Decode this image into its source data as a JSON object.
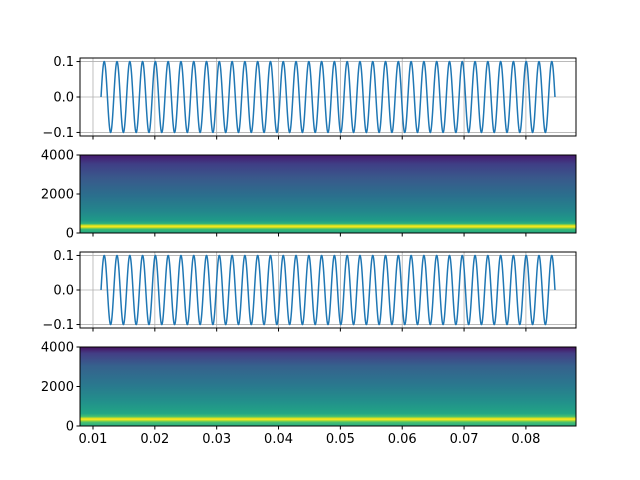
{
  "chart_data": [
    {
      "type": "line",
      "title": "",
      "xlabel": "",
      "ylabel": "",
      "x_range": [
        0.0113,
        0.0847
      ],
      "xlim": [
        0.0079,
        0.0881
      ],
      "ylim": [
        -0.11,
        0.11
      ],
      "yticks": [
        0.1,
        0.0,
        -0.1
      ],
      "ytick_labels": [
        "0.1",
        "0.0",
        "−0.1"
      ],
      "xtick_labels_shown": false,
      "grid": true,
      "signal": {
        "amplitude": 0.1,
        "cycles": 35.5,
        "phase": "sine"
      },
      "series": [
        {
          "color": "#1f77b4"
        }
      ]
    },
    {
      "type": "heatmap",
      "title": "",
      "xlabel": "",
      "ylabel": "",
      "xlim": [
        0.0079,
        0.0881
      ],
      "ylim": [
        0,
        4000
      ],
      "yticks": [
        4000,
        2000,
        0
      ],
      "ytick_labels": [
        "4000",
        "2000",
        "0"
      ],
      "xtick_labels_shown": false,
      "colormap": "viridis",
      "dominant_frequency": 430,
      "peak_band": [
        360,
        500
      ]
    },
    {
      "type": "line",
      "title": "",
      "xlabel": "",
      "ylabel": "",
      "x_range": [
        0.0113,
        0.0847
      ],
      "xlim": [
        0.0079,
        0.0881
      ],
      "ylim": [
        -0.11,
        0.11
      ],
      "yticks": [
        0.1,
        0.0,
        -0.1
      ],
      "ytick_labels": [
        "0.1",
        "0.0",
        "−0.1"
      ],
      "xtick_labels_shown": false,
      "grid": true,
      "signal": {
        "amplitude": 0.1,
        "cycles": 35.5,
        "phase": "sine"
      },
      "series": [
        {
          "color": "#1f77b4"
        }
      ]
    },
    {
      "type": "heatmap",
      "title": "",
      "xlabel": "",
      "ylabel": "",
      "xlim": [
        0.0079,
        0.0881
      ],
      "ylim": [
        0,
        4000
      ],
      "yticks": [
        4000,
        2000,
        0
      ],
      "ytick_labels": [
        "4000",
        "2000",
        "0"
      ],
      "xticks": [
        0.01,
        0.02,
        0.03,
        0.04,
        0.05,
        0.06,
        0.07,
        0.08
      ],
      "xtick_labels": [
        "0.01",
        "0.02",
        "0.03",
        "0.04",
        "0.05",
        "0.06",
        "0.07",
        "0.08"
      ],
      "xtick_labels_shown": true,
      "colormap": "viridis",
      "dominant_frequency": 430,
      "peak_band": [
        360,
        500
      ]
    }
  ]
}
